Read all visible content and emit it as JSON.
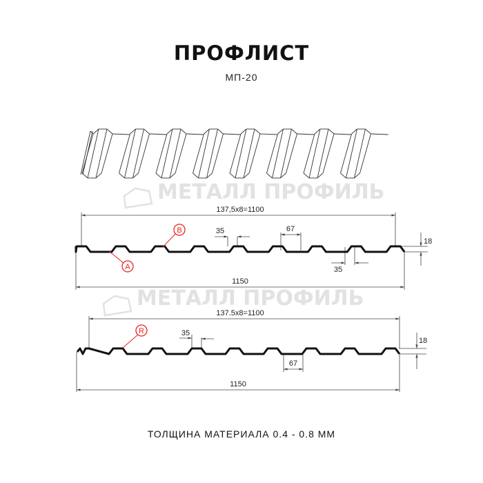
{
  "header": {
    "title": "ПРОФЛИСТ",
    "model": "МП-20"
  },
  "watermark": {
    "text": "МЕТАЛЛ ПРОФИЛЬ"
  },
  "profile_a": {
    "pitch_label": "137,5x8=1100",
    "top_width": "35",
    "bottom_width": "67",
    "bottom_width2": "35",
    "height": "18",
    "total_width": "1150",
    "markers": [
      "A",
      "B"
    ]
  },
  "profile_r": {
    "pitch_label": "137.5x8=1100",
    "top_width": "35",
    "bottom_width": "67",
    "height": "18",
    "total_width": "1150",
    "marker": "R"
  },
  "footer": {
    "text": "ТОЛЩИНА МАТЕРИАЛА 0.4 - 0.8 ММ"
  },
  "colors": {
    "profile": "#111111",
    "marker": "#e8201c",
    "watermark": "#e2e2e2"
  }
}
